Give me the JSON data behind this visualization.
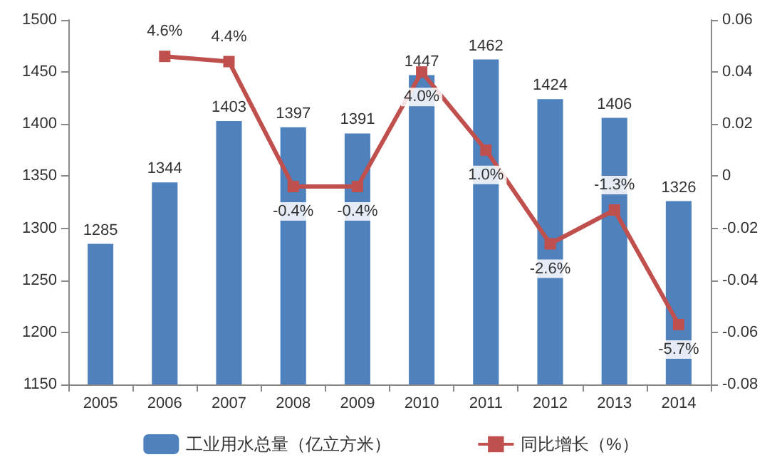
{
  "chart_data": {
    "type": "bar",
    "categories": [
      "2005",
      "2006",
      "2007",
      "2008",
      "2009",
      "2010",
      "2011",
      "2012",
      "2013",
      "2014"
    ],
    "series": [
      {
        "name": "工业用水总量（亿立方米）",
        "color": "#4f81bd",
        "values": [
          1285,
          1344,
          1403,
          1397,
          1391,
          1447,
          1462,
          1424,
          1406,
          1326
        ],
        "value_labels": [
          "1285",
          "1344",
          "1403",
          "1397",
          "1391",
          "1447",
          "1462",
          "1424",
          "1406",
          "1326"
        ]
      },
      {
        "name": "同比增长（%）",
        "type": "line",
        "axis": "y2",
        "color": "#c0504d",
        "marker": "square",
        "values": [
          null,
          0.046,
          0.044,
          -0.004,
          -0.004,
          0.04,
          0.01,
          -0.026,
          -0.013,
          -0.057
        ],
        "value_labels": [
          null,
          "4.6%",
          "4.4%",
          "-0.4%",
          "-0.4%",
          "4.0%",
          "1.0%",
          "-2.6%",
          "-1.3%",
          "-5.7%"
        ]
      }
    ],
    "ylim": [
      1150,
      1500
    ],
    "yticks": [
      1150,
      1200,
      1250,
      1300,
      1350,
      1400,
      1450,
      1500
    ],
    "y2lim": [
      -0.08,
      0.06
    ],
    "y2ticks": [
      -0.08,
      -0.06,
      -0.04,
      -0.02,
      0,
      0.02,
      0.04,
      0.06
    ],
    "grid": false,
    "legend": "bottom"
  }
}
